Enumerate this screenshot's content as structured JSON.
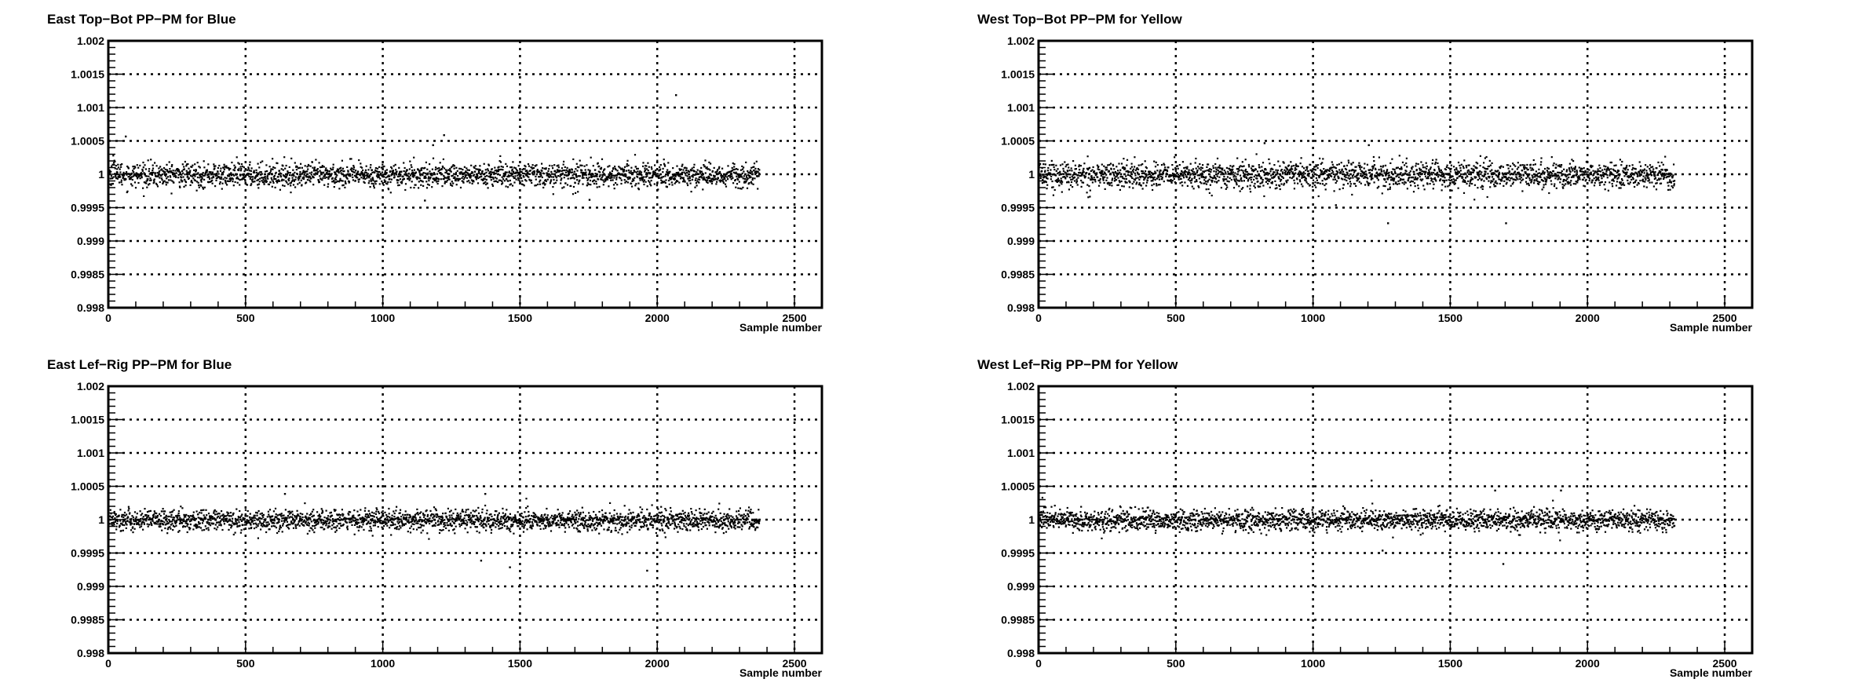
{
  "chart_data": [
    {
      "type": "scatter",
      "title": "East Top−Bot PP−PM for Blue",
      "xlabel": "Sample number",
      "ylabel": "",
      "xlim": [
        0,
        2600
      ],
      "ylim": [
        0.998,
        1.002
      ],
      "xticks": [
        "0",
        "500",
        "1000",
        "1500",
        "2000",
        "2500"
      ],
      "yticks": [
        "0.998",
        "0.9985",
        "0.999",
        "0.9995",
        "1",
        "1.0005",
        "1.001",
        "1.0015",
        "1.002"
      ],
      "grid": true,
      "n_samples": 2370,
      "center": 1.0,
      "spread": 9e-05,
      "outliers": [
        [
          60,
          1.00058
        ],
        [
          1220,
          1.0006
        ],
        [
          2065,
          1.0012
        ],
        [
          1150,
          0.99962
        ],
        [
          1750,
          0.99963
        ],
        [
          1180,
          1.00045
        ]
      ]
    },
    {
      "type": "scatter",
      "title": "West Top−Bot PP−PM for Yellow",
      "xlabel": "Sample number",
      "ylabel": "",
      "xlim": [
        0,
        2600
      ],
      "ylim": [
        0.998,
        1.002
      ],
      "xticks": [
        "0",
        "500",
        "1000",
        "1500",
        "2000",
        "2500"
      ],
      "yticks": [
        "0.998",
        "0.9985",
        "0.999",
        "0.9995",
        "1",
        "1.0005",
        "1.001",
        "1.0015",
        "1.002"
      ],
      "grid": true,
      "n_samples": 2315,
      "center": 1.0,
      "spread": 0.0001,
      "outliers": [
        [
          1270,
          0.99928
        ],
        [
          1700,
          0.99928
        ],
        [
          820,
          1.00048
        ],
        [
          1200,
          1.00045
        ],
        [
          1080,
          0.99955
        ]
      ]
    },
    {
      "type": "scatter",
      "title": "East Lef−Rig PP−PM for Blue",
      "xlabel": "Sample number",
      "ylabel": "",
      "xlim": [
        0,
        2600
      ],
      "ylim": [
        0.998,
        1.002
      ],
      "xticks": [
        "0",
        "500",
        "1000",
        "1500",
        "2000",
        "2500"
      ],
      "yticks": [
        "0.998",
        "0.9985",
        "0.999",
        "0.9995",
        "1",
        "1.0005",
        "1.001",
        "1.0015",
        "1.002"
      ],
      "grid": true,
      "n_samples": 2370,
      "center": 1.0,
      "spread": 8e-05,
      "outliers": [
        [
          1960,
          0.99925
        ],
        [
          1355,
          0.9994
        ],
        [
          1460,
          0.9993
        ],
        [
          640,
          1.0004
        ],
        [
          1370,
          1.0004
        ]
      ]
    },
    {
      "type": "scatter",
      "title": "West Lef−Rig PP−PM for Yellow",
      "xlabel": "Sample number",
      "ylabel": "",
      "xlim": [
        0,
        2600
      ],
      "ylim": [
        0.998,
        1.002
      ],
      "xticks": [
        "0",
        "500",
        "1000",
        "1500",
        "2000",
        "2500"
      ],
      "yticks": [
        "0.998",
        "0.9985",
        "0.999",
        "0.9995",
        "1",
        "1.0005",
        "1.001",
        "1.0015",
        "1.002"
      ],
      "grid": true,
      "n_samples": 2315,
      "center": 1.0,
      "spread": 8e-05,
      "outliers": [
        [
          1210,
          1.0006
        ],
        [
          1690,
          0.99935
        ],
        [
          1660,
          1.00045
        ],
        [
          1250,
          0.99955
        ],
        [
          1900,
          1.00045
        ]
      ]
    }
  ]
}
